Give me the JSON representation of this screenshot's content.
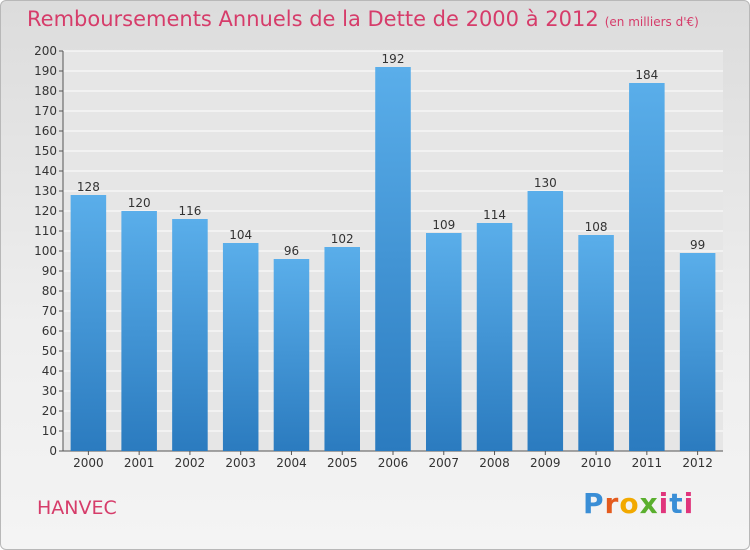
{
  "header": {
    "title": "Remboursements Annuels de la Dette de 2000 à 2012",
    "subtitle": "(en milliers d'€)"
  },
  "footer": {
    "town": "HANVEC",
    "logo": "Proxiti"
  },
  "colors": {
    "title": "#d63c6a",
    "bar_top": "#5aaeea",
    "bar_bottom": "#2b7bbf"
  },
  "chart_data": {
    "type": "bar",
    "title": "Remboursements Annuels de la Dette de 2000 à 2012",
    "subtitle": "(en milliers d'€)",
    "xlabel": "",
    "ylabel": "",
    "categories": [
      "2000",
      "2001",
      "2002",
      "2003",
      "2004",
      "2005",
      "2006",
      "2007",
      "2008",
      "2009",
      "2010",
      "2011",
      "2012"
    ],
    "values": [
      128,
      120,
      116,
      104,
      96,
      102,
      192,
      109,
      114,
      130,
      108,
      184,
      99
    ],
    "ylim": [
      0,
      200
    ],
    "yticks": [
      0,
      10,
      20,
      30,
      40,
      50,
      60,
      70,
      80,
      90,
      100,
      110,
      120,
      130,
      140,
      150,
      160,
      170,
      180,
      190,
      200
    ],
    "grid": true,
    "legend": "none"
  }
}
